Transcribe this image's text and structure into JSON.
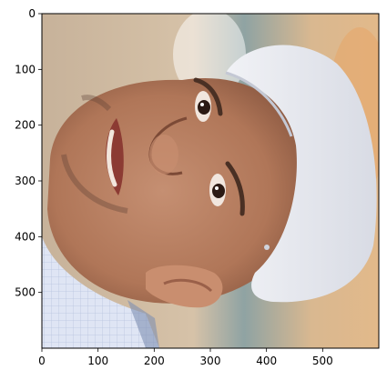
{
  "chart_data": {
    "type": "image",
    "title": "",
    "xlabel": "",
    "ylabel": "",
    "xlim": [
      0,
      600
    ],
    "ylim": [
      600,
      0
    ],
    "x_ticks": [
      0,
      100,
      200,
      300,
      400,
      500
    ],
    "y_ticks": [
      0,
      100,
      200,
      300,
      400,
      500
    ],
    "grid": false,
    "image_content": "photo-of-smiling-man-in-white-cap-rotated"
  },
  "colors": {
    "background": "#ffffff",
    "axis": "#000000",
    "cap": "#e6e8ee",
    "skin": "#b98162",
    "shirt": "#d9e1f3"
  }
}
